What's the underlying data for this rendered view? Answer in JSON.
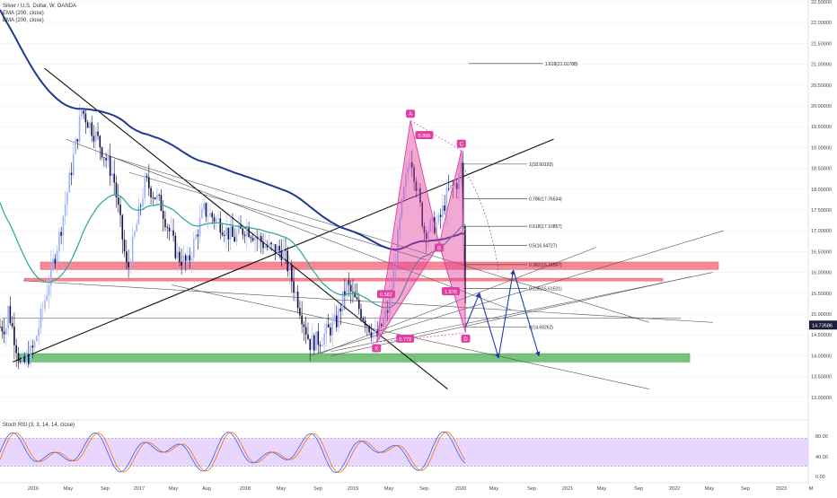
{
  "header": {
    "title": "Silver / U.S. Dollar, W, OANDA",
    "ema1": "EMA (200, close)",
    "ema2": "EMA (200, close)"
  },
  "osc_label": "Stoch RSI (3, 3, 14, 14, close)",
  "price_badge": "14.73586",
  "colors": {
    "up": "#9db0ff",
    "down": "#111144",
    "ema_blue": "#1f3a93",
    "ema_green": "#26a69a",
    "pattern": "#e040a0",
    "resistance": "#f06070",
    "support": "#4caf50",
    "arrow": "#1a3cab",
    "stoch_band": "#e0c4ff"
  },
  "chart_data": {
    "type": "candlestick",
    "symbol": "Silver / U.S. Dollar",
    "timeframe": "W",
    "ylim": [
      12.5,
      22.5
    ],
    "y_ticks": [
      "22.50000",
      "22.00000",
      "21.50000",
      "21.00000",
      "20.50000",
      "20.00000",
      "19.50000",
      "19.00000",
      "18.50000",
      "18.00000",
      "17.50000",
      "17.00000",
      "16.50000",
      "16.00000",
      "15.50000",
      "15.00000",
      "14.50000",
      "14.00000",
      "13.50000",
      "13.00000"
    ],
    "x_ticks": [
      "2016",
      "May",
      "Sep",
      "2017",
      "May",
      "Aug",
      "2018",
      "May",
      "Sep",
      "2019",
      "May",
      "Sep",
      "2020",
      "May",
      "Sep",
      "2021",
      "May",
      "Sep",
      "2022",
      "May",
      "Sep",
      "2023",
      "M"
    ],
    "last_price": 14.73586,
    "harmonic": {
      "points": [
        {
          "label": "X",
          "t": 2019.33,
          "price": 14.32
        },
        {
          "label": "A",
          "t": 2019.65,
          "price": 19.65
        },
        {
          "label": "B",
          "t": 2019.92,
          "price": 16.67
        },
        {
          "label": "C",
          "t": 2020.13,
          "price": 18.93
        },
        {
          "label": "D",
          "t": 2020.17,
          "price": 14.55
        }
      ],
      "ratios": [
        {
          "text": "0.866",
          "t": 2019.78,
          "price": 19.29
        },
        {
          "text": "0.582",
          "t": 2019.42,
          "price": 15.47
        },
        {
          "text": "0.772",
          "t": 2019.6,
          "price": 14.4
        },
        {
          "text": "1.878",
          "t": 2020.03,
          "price": 15.54
        }
      ]
    },
    "fib_levels": [
      {
        "label": "1.618(21.01788)",
        "price": 21.01788
      },
      {
        "label": "1(18.60193)",
        "price": 18.60193
      },
      {
        "label": "0.786(17.76534)",
        "price": 17.76534
      },
      {
        "label": "0.618(17.10857)",
        "price": 17.10857
      },
      {
        "label": "0.5(16.64727)",
        "price": 16.64727
      },
      {
        "label": "0.382(16.18597)",
        "price": 16.18597
      },
      {
        "label": "0.236(15.61521)",
        "price": 15.61521
      },
      {
        "label": "0(14.69262)",
        "price": 14.69262
      }
    ],
    "zones": [
      {
        "name": "resistance-upper",
        "from": 16.07,
        "to": 16.25
      },
      {
        "name": "resistance-lower",
        "from": 15.8,
        "to": 15.86
      },
      {
        "name": "support",
        "from": 13.85,
        "to": 14.05
      }
    ],
    "oscillator": {
      "name": "Stoch RSI",
      "levels": [
        80,
        20
      ],
      "ticks": [
        "80.00",
        "40.00",
        "0.00"
      ]
    }
  }
}
